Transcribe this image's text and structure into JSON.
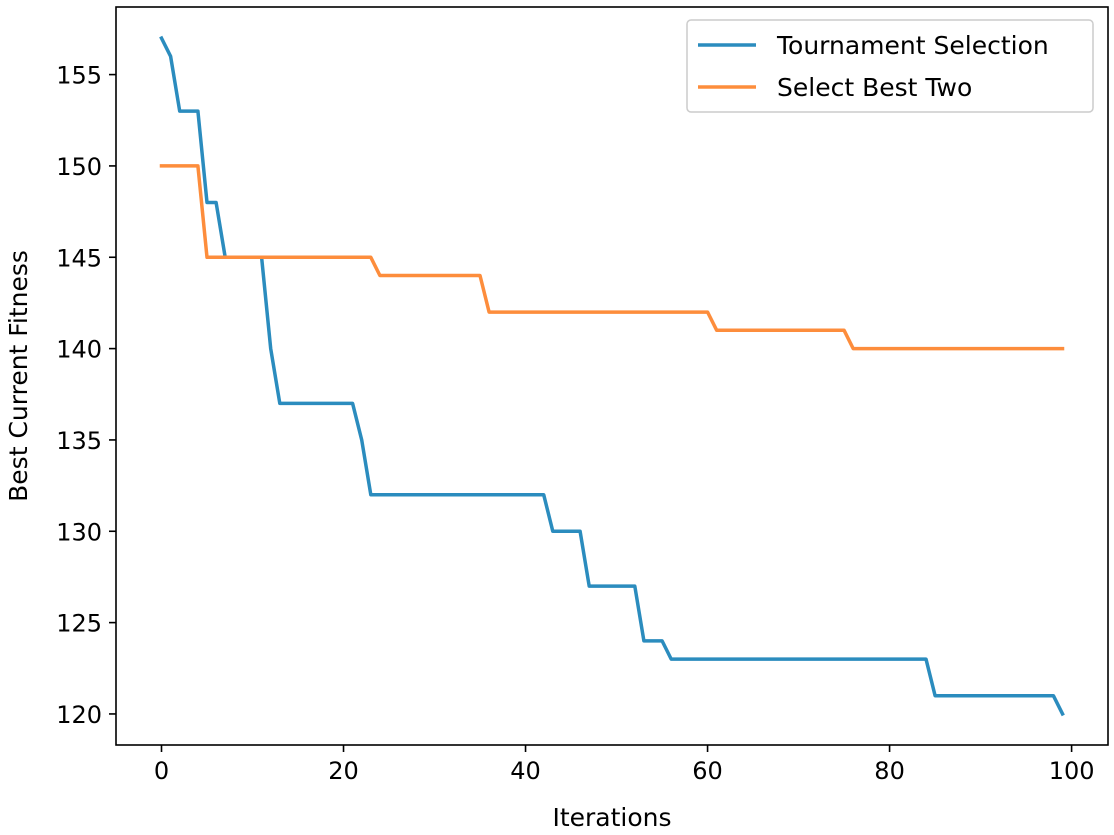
{
  "chart_data": {
    "type": "line",
    "title": "",
    "xlabel": "Iterations",
    "ylabel": "Best Current Fitness",
    "xlim": [
      -5,
      104
    ],
    "ylim": [
      118.3,
      158.7
    ],
    "xticks": [
      0,
      20,
      40,
      60,
      80,
      100
    ],
    "yticks": [
      120,
      125,
      130,
      135,
      140,
      145,
      150,
      155
    ],
    "grid": false,
    "legend_position": "top-right",
    "series": [
      {
        "name": "Tournament Selection",
        "color": "#2b8cbe",
        "points": [
          [
            0,
            157
          ],
          [
            1,
            156
          ],
          [
            2,
            153
          ],
          [
            4,
            153
          ],
          [
            5,
            148
          ],
          [
            6,
            148
          ],
          [
            7,
            145
          ],
          [
            11,
            145
          ],
          [
            12,
            140
          ],
          [
            13,
            137
          ],
          [
            21,
            137
          ],
          [
            22,
            135
          ],
          [
            23,
            132
          ],
          [
            42,
            132
          ],
          [
            43,
            130
          ],
          [
            46,
            130
          ],
          [
            47,
            127
          ],
          [
            52,
            127
          ],
          [
            53,
            124
          ],
          [
            55,
            124
          ],
          [
            56,
            123
          ],
          [
            84,
            123
          ],
          [
            85,
            121
          ],
          [
            98,
            121
          ],
          [
            99,
            120
          ]
        ]
      },
      {
        "name": "Select Best Two",
        "color": "#fd8d3c",
        "points": [
          [
            0,
            150
          ],
          [
            4,
            150
          ],
          [
            5,
            145
          ],
          [
            23,
            145
          ],
          [
            24,
            144
          ],
          [
            35,
            144
          ],
          [
            36,
            142
          ],
          [
            60,
            142
          ],
          [
            61,
            141
          ],
          [
            75,
            141
          ],
          [
            76,
            140
          ],
          [
            99,
            140
          ]
        ]
      }
    ]
  }
}
